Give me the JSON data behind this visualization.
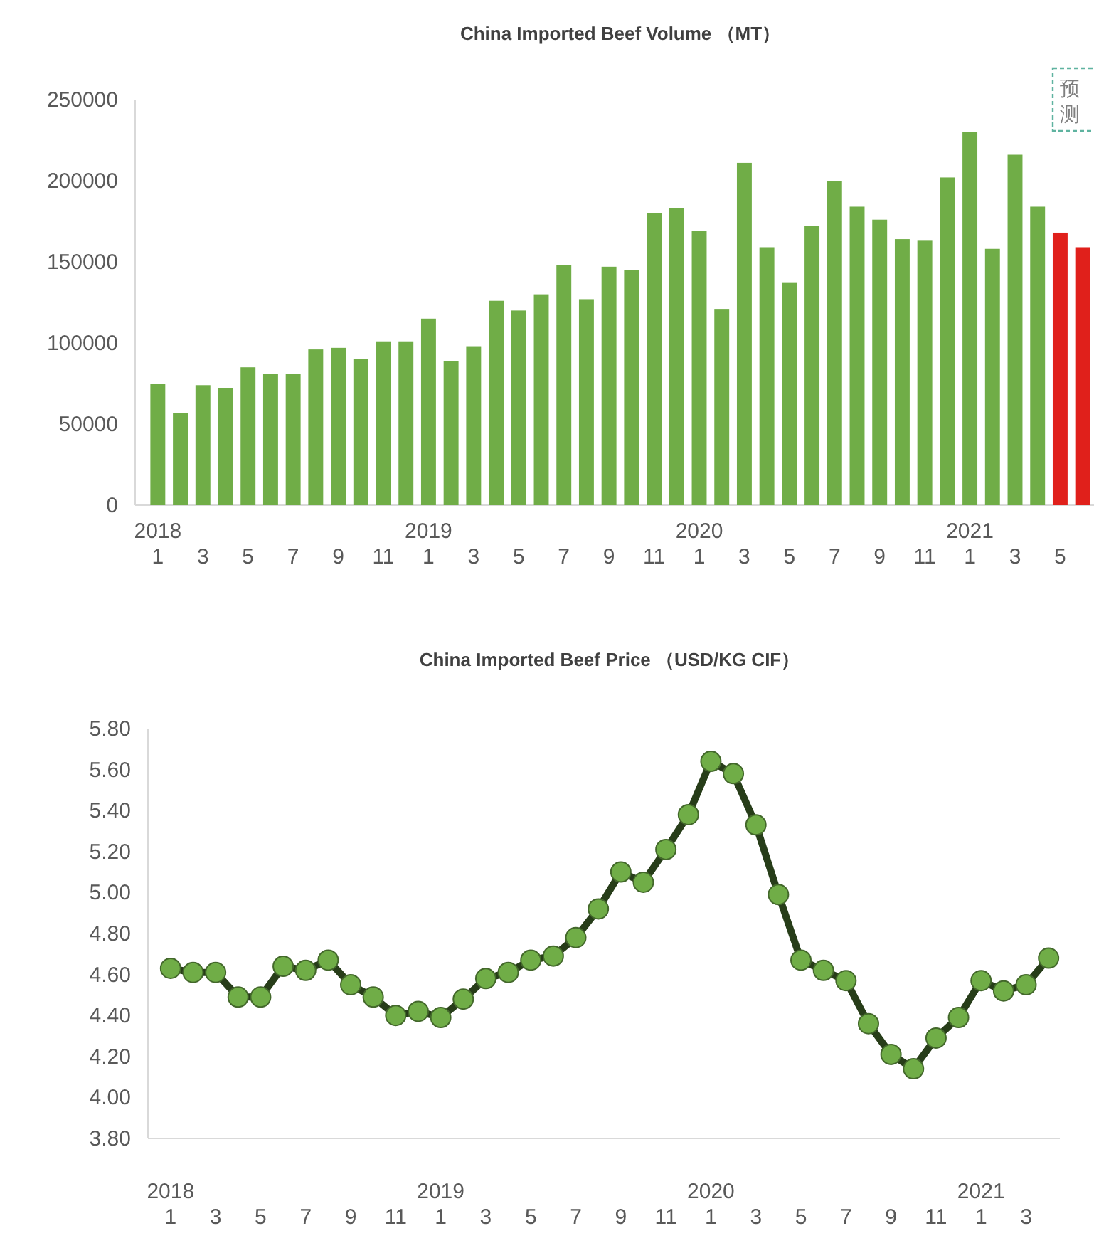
{
  "chart_data": [
    {
      "type": "bar",
      "title": "China Imported Beef Volume （MT）",
      "categories": [
        "2018\n1",
        null,
        "3",
        null,
        "5",
        null,
        "7",
        null,
        "9",
        null,
        "11",
        null,
        "2019\n1",
        null,
        "3",
        null,
        "5",
        null,
        "7",
        null,
        "9",
        null,
        "11",
        null,
        "2020\n1",
        null,
        "3",
        null,
        "5",
        null,
        "7",
        null,
        "9",
        null,
        "11",
        null,
        "2021\n1",
        null,
        "3",
        null,
        "5",
        null
      ],
      "values": [
        75000,
        57000,
        74000,
        72000,
        85000,
        81000,
        81000,
        96000,
        97000,
        90000,
        101000,
        101000,
        115000,
        89000,
        98000,
        126000,
        120000,
        130000,
        148000,
        127000,
        147000,
        145000,
        180000,
        183000,
        169000,
        121000,
        211000,
        159000,
        137000,
        172000,
        200000,
        184000,
        176000,
        164000,
        163000,
        202000,
        230000,
        158000,
        216000,
        184000,
        168000,
        159000
      ],
      "colors": [
        "#70ad47",
        "#70ad47",
        "#70ad47",
        "#70ad47",
        "#70ad47",
        "#70ad47",
        "#70ad47",
        "#70ad47",
        "#70ad47",
        "#70ad47",
        "#70ad47",
        "#70ad47",
        "#70ad47",
        "#70ad47",
        "#70ad47",
        "#70ad47",
        "#70ad47",
        "#70ad47",
        "#70ad47",
        "#70ad47",
        "#70ad47",
        "#70ad47",
        "#70ad47",
        "#70ad47",
        "#70ad47",
        "#70ad47",
        "#70ad47",
        "#70ad47",
        "#70ad47",
        "#70ad47",
        "#70ad47",
        "#70ad47",
        "#70ad47",
        "#70ad47",
        "#70ad47",
        "#70ad47",
        "#70ad47",
        "#70ad47",
        "#70ad47",
        "#70ad47",
        "#e0201b",
        "#e0201b"
      ],
      "ylim": [
        0,
        250000
      ],
      "yticks": [
        0,
        50000,
        100000,
        150000,
        200000,
        250000
      ],
      "annotations": [
        "预测"
      ]
    },
    {
      "type": "line",
      "title": "China Imported Beef Price （USD/KG CIF）",
      "categories": [
        "2018\n1",
        null,
        "3",
        null,
        "5",
        null,
        "7",
        null,
        "9",
        null,
        "11",
        null,
        "2019\n1",
        null,
        "3",
        null,
        "5",
        null,
        "7",
        null,
        "9",
        null,
        "11",
        null,
        "2020\n1",
        null,
        "3",
        null,
        "5",
        null,
        "7",
        null,
        "9",
        null,
        "11",
        null,
        "2021\n1",
        null,
        "3",
        null
      ],
      "series": [
        {
          "color": "#70ad47",
          "values": [
            4.63,
            4.61,
            4.61,
            4.49,
            4.49,
            4.64,
            4.62,
            4.67,
            4.55,
            4.49,
            4.4,
            4.42,
            4.39,
            4.48,
            4.58,
            4.61,
            4.67,
            4.69,
            4.78,
            4.92,
            5.1,
            5.05,
            5.21,
            5.38,
            5.64,
            5.58,
            5.33,
            4.99,
            4.67,
            4.62,
            4.57,
            4.36,
            4.21,
            4.14,
            4.29,
            4.39,
            4.57,
            4.52,
            4.55,
            4.68
          ]
        }
      ],
      "marker": "circle",
      "ylim": [
        3.8,
        5.8
      ],
      "yticks": [
        {
          "value": 3.8,
          "label": "3.80"
        },
        {
          "value": 4.0,
          "label": "4.00"
        },
        {
          "value": 4.2,
          "label": "4.20"
        },
        {
          "value": 4.4,
          "label": "4.40"
        },
        {
          "value": 4.6,
          "label": "4.60"
        },
        {
          "value": 4.8,
          "label": "4.80"
        },
        {
          "value": 5.0,
          "label": "5.00"
        },
        {
          "value": 5.2,
          "label": "5.20"
        },
        {
          "value": 5.4,
          "label": "5.40"
        },
        {
          "value": 5.6,
          "label": "5.60"
        },
        {
          "value": 5.8,
          "label": "5.80"
        }
      ]
    }
  ]
}
